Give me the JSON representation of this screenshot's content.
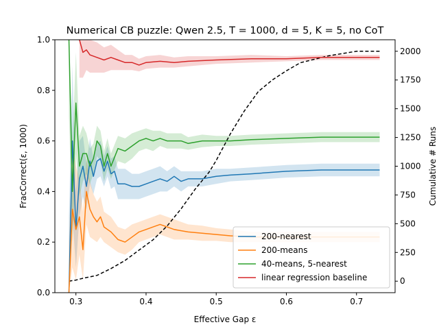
{
  "chart_data": {
    "type": "line",
    "title": "Numerical CB puzzle: Qwen 2.5, T = 1000, d = 5, K = 5, no CoT",
    "xlabel": "Effective Gap ε",
    "ylabel": "FracCorrect(ε, 1000)",
    "y2label": "Cumulative # Runs",
    "xlim": [
      0.27,
      0.755
    ],
    "ylim": [
      0.0,
      1.0
    ],
    "y2lim": [
      -100,
      2100
    ],
    "x_ticks": [
      0.3,
      0.4,
      0.5,
      0.6,
      0.7
    ],
    "y_ticks": [
      0.0,
      0.2,
      0.4,
      0.6,
      0.8,
      1.0
    ],
    "y2_ticks": [
      0,
      250,
      500,
      750,
      1000,
      1250,
      1500,
      1750,
      2000
    ],
    "legend_position": "lower right",
    "series": [
      {
        "name": "200-nearest",
        "color": "#1f77b4",
        "x": [
          0.29,
          0.295,
          0.3,
          0.305,
          0.31,
          0.315,
          0.32,
          0.325,
          0.33,
          0.335,
          0.34,
          0.345,
          0.35,
          0.355,
          0.36,
          0.37,
          0.38,
          0.39,
          0.4,
          0.41,
          0.42,
          0.43,
          0.44,
          0.45,
          0.46,
          0.48,
          0.5,
          0.52,
          0.55,
          0.6,
          0.65,
          0.7,
          0.733
        ],
        "y": [
          0.0,
          0.6,
          0.25,
          0.45,
          0.5,
          0.42,
          0.52,
          0.46,
          0.52,
          0.53,
          0.48,
          0.52,
          0.47,
          0.48,
          0.43,
          0.43,
          0.42,
          0.42,
          0.43,
          0.44,
          0.45,
          0.44,
          0.46,
          0.44,
          0.45,
          0.45,
          0.46,
          0.465,
          0.47,
          0.48,
          0.485,
          0.485,
          0.485
        ],
        "lower": [
          0.0,
          0.3,
          0.1,
          0.3,
          0.38,
          0.33,
          0.43,
          0.39,
          0.45,
          0.46,
          0.42,
          0.46,
          0.41,
          0.42,
          0.37,
          0.37,
          0.37,
          0.37,
          0.38,
          0.39,
          0.4,
          0.4,
          0.42,
          0.4,
          0.42,
          0.42,
          0.43,
          0.44,
          0.445,
          0.455,
          0.46,
          0.46,
          0.46
        ],
        "upper": [
          0.3,
          0.9,
          0.4,
          0.6,
          0.62,
          0.51,
          0.61,
          0.53,
          0.59,
          0.6,
          0.54,
          0.58,
          0.53,
          0.54,
          0.49,
          0.49,
          0.47,
          0.47,
          0.48,
          0.49,
          0.5,
          0.48,
          0.5,
          0.48,
          0.48,
          0.48,
          0.49,
          0.49,
          0.495,
          0.505,
          0.51,
          0.51,
          0.51
        ]
      },
      {
        "name": "200-means",
        "color": "#ff7f0e",
        "x": [
          0.29,
          0.295,
          0.3,
          0.305,
          0.31,
          0.315,
          0.32,
          0.325,
          0.33,
          0.335,
          0.34,
          0.35,
          0.36,
          0.37,
          0.38,
          0.39,
          0.4,
          0.41,
          0.42,
          0.43,
          0.44,
          0.45,
          0.46,
          0.48,
          0.5,
          0.52,
          0.55,
          0.6,
          0.65,
          0.7,
          0.733
        ],
        "y": [
          0.0,
          0.33,
          0.25,
          0.3,
          0.17,
          0.4,
          0.33,
          0.3,
          0.28,
          0.3,
          0.26,
          0.24,
          0.21,
          0.2,
          0.22,
          0.24,
          0.25,
          0.26,
          0.27,
          0.26,
          0.25,
          0.245,
          0.24,
          0.235,
          0.23,
          0.225,
          0.22,
          0.22,
          0.22,
          0.22,
          0.22
        ],
        "lower": [
          0.0,
          0.1,
          0.05,
          0.15,
          0.05,
          0.27,
          0.22,
          0.21,
          0.2,
          0.22,
          0.2,
          0.18,
          0.16,
          0.15,
          0.17,
          0.2,
          0.21,
          0.22,
          0.23,
          0.22,
          0.21,
          0.21,
          0.21,
          0.205,
          0.205,
          0.2,
          0.2,
          0.2,
          0.2,
          0.2,
          0.2
        ],
        "upper": [
          0.2,
          0.6,
          0.5,
          0.45,
          0.32,
          0.53,
          0.44,
          0.39,
          0.36,
          0.38,
          0.32,
          0.3,
          0.26,
          0.25,
          0.27,
          0.28,
          0.29,
          0.3,
          0.31,
          0.3,
          0.29,
          0.28,
          0.27,
          0.265,
          0.255,
          0.25,
          0.24,
          0.24,
          0.24,
          0.24,
          0.24
        ]
      },
      {
        "name": "40-means, 5-nearest",
        "color": "#2ca02c",
        "x": [
          0.29,
          0.295,
          0.3,
          0.305,
          0.31,
          0.315,
          0.32,
          0.325,
          0.33,
          0.335,
          0.34,
          0.345,
          0.35,
          0.36,
          0.37,
          0.38,
          0.39,
          0.4,
          0.41,
          0.42,
          0.43,
          0.44,
          0.45,
          0.46,
          0.48,
          0.5,
          0.52,
          0.55,
          0.6,
          0.65,
          0.7,
          0.733
        ],
        "y": [
          1.0,
          0.4,
          0.75,
          0.5,
          0.55,
          0.55,
          0.5,
          0.53,
          0.6,
          0.58,
          0.5,
          0.55,
          0.5,
          0.57,
          0.56,
          0.58,
          0.6,
          0.61,
          0.6,
          0.61,
          0.6,
          0.6,
          0.6,
          0.59,
          0.6,
          0.6,
          0.6,
          0.605,
          0.61,
          0.615,
          0.615,
          0.615
        ],
        "lower": [
          0.7,
          0.2,
          0.55,
          0.38,
          0.44,
          0.47,
          0.43,
          0.47,
          0.54,
          0.52,
          0.44,
          0.49,
          0.45,
          0.52,
          0.51,
          0.53,
          0.56,
          0.57,
          0.56,
          0.58,
          0.57,
          0.57,
          0.57,
          0.565,
          0.575,
          0.58,
          0.58,
          0.585,
          0.59,
          0.595,
          0.595,
          0.595
        ],
        "upper": [
          1.0,
          0.6,
          0.95,
          0.62,
          0.66,
          0.63,
          0.57,
          0.59,
          0.66,
          0.64,
          0.56,
          0.61,
          0.55,
          0.62,
          0.61,
          0.63,
          0.64,
          0.65,
          0.64,
          0.64,
          0.63,
          0.63,
          0.63,
          0.615,
          0.625,
          0.62,
          0.62,
          0.625,
          0.63,
          0.635,
          0.635,
          0.635
        ]
      },
      {
        "name": "linear regression baseline",
        "color": "#d62728",
        "x": [
          0.305,
          0.31,
          0.315,
          0.32,
          0.33,
          0.34,
          0.35,
          0.36,
          0.37,
          0.38,
          0.39,
          0.4,
          0.42,
          0.44,
          0.46,
          0.5,
          0.55,
          0.6,
          0.65,
          0.7,
          0.733
        ],
        "y": [
          1.0,
          0.95,
          0.96,
          0.94,
          0.93,
          0.92,
          0.93,
          0.92,
          0.91,
          0.91,
          0.9,
          0.91,
          0.915,
          0.91,
          0.915,
          0.92,
          0.925,
          0.925,
          0.93,
          0.93,
          0.93
        ],
        "lower": [
          0.85,
          0.85,
          0.88,
          0.87,
          0.87,
          0.87,
          0.88,
          0.88,
          0.88,
          0.88,
          0.875,
          0.885,
          0.89,
          0.89,
          0.895,
          0.905,
          0.91,
          0.915,
          0.92,
          0.92,
          0.92
        ],
        "upper": [
          1.0,
          1.0,
          1.0,
          1.0,
          0.99,
          0.97,
          0.98,
          0.96,
          0.94,
          0.94,
          0.925,
          0.935,
          0.94,
          0.93,
          0.935,
          0.935,
          0.94,
          0.935,
          0.94,
          0.94,
          0.94
        ]
      }
    ],
    "cumulative_runs": {
      "name": "Cumulative # Runs",
      "axis": "right",
      "color": "#000000",
      "style": "dashed",
      "x": [
        0.29,
        0.3,
        0.31,
        0.33,
        0.35,
        0.37,
        0.39,
        0.41,
        0.43,
        0.45,
        0.47,
        0.49,
        0.5,
        0.52,
        0.54,
        0.56,
        0.58,
        0.6,
        0.62,
        0.64,
        0.66,
        0.68,
        0.7,
        0.72,
        0.733
      ],
      "y": [
        0,
        10,
        25,
        50,
        110,
        180,
        270,
        360,
        480,
        630,
        800,
        950,
        1050,
        1280,
        1480,
        1650,
        1750,
        1830,
        1900,
        1930,
        1960,
        1980,
        2000,
        2000,
        2000
      ]
    }
  }
}
